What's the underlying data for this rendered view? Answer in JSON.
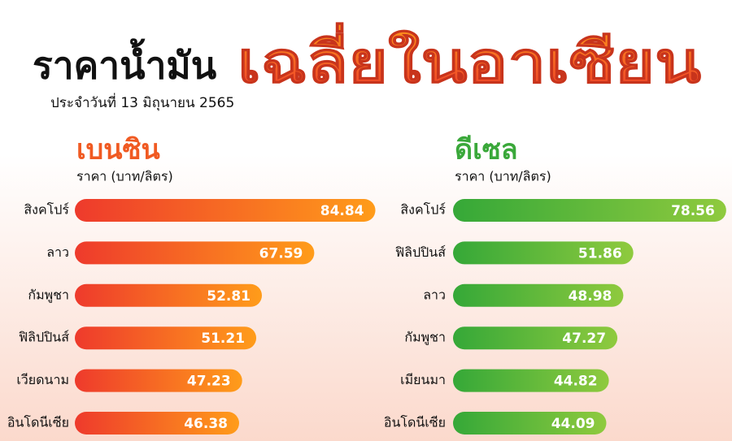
{
  "header": {
    "title_1": "ราคาน้ำมัน",
    "title_2": "เฉลี่ยในอาเซียน",
    "subtitle": "ประจำวันที่ 13 มิถุนายน 2565"
  },
  "chart_data": [
    {
      "type": "bar",
      "orientation": "horizontal",
      "title": "เบนซิน",
      "axis_label": "ราคา (บาท/ลิตร)",
      "categories": [
        "สิงคโปร์",
        "ลาว",
        "กัมพูชา",
        "ฟิลิปปินส์",
        "เวียดนาม",
        "อินโดนีเซีย"
      ],
      "values": [
        84.84,
        67.59,
        52.81,
        51.21,
        47.23,
        46.38
      ],
      "colors": [
        "#ee3a2c",
        "#ff9c1a"
      ],
      "title_color": "#f05a22",
      "xlim": [
        0,
        90
      ]
    },
    {
      "type": "bar",
      "orientation": "horizontal",
      "title": "ดีเซล",
      "axis_label": "ราคา (บาท/ลิตร)",
      "categories": [
        "สิงคโปร์",
        "ฟิลิปปินส์",
        "ลาว",
        "กัมพูชา",
        "เมียนมา",
        "อินโดนีเซีย"
      ],
      "values": [
        78.56,
        51.86,
        48.98,
        47.27,
        44.82,
        44.09
      ],
      "colors": [
        "#35a838",
        "#8fca3e"
      ],
      "title_color": "#3aa83a",
      "xlim": [
        0,
        80
      ]
    }
  ]
}
